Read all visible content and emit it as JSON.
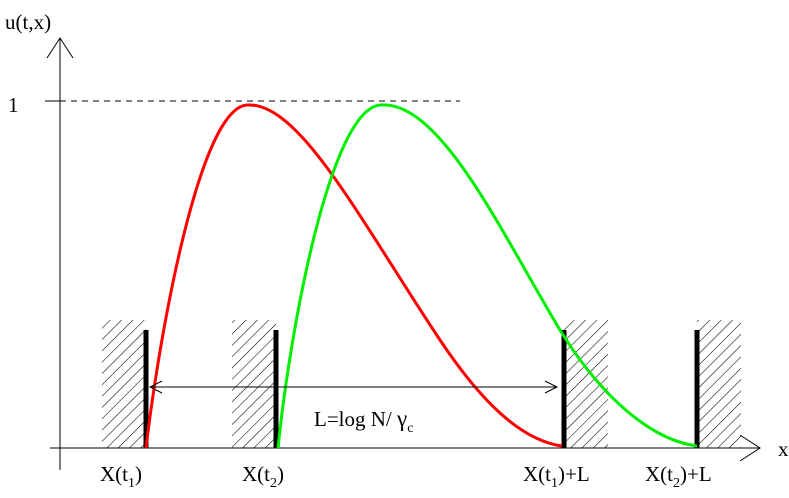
{
  "axes": {
    "y_label": "u(t,x)",
    "x_label": "x",
    "y_tick": "1"
  },
  "walls": [
    {
      "label_main": "X(t",
      "label_sub": "1",
      "label_tail": ")"
    },
    {
      "label_main": "X(t",
      "label_sub": "2",
      "label_tail": ")"
    },
    {
      "label_main": "X(t",
      "label_sub": "1",
      "label_tail": ")+L"
    },
    {
      "label_main": "X(t",
      "label_sub": "2",
      "label_tail": ")+L"
    }
  ],
  "width_annotation": {
    "text_main": "L=log N/ ",
    "greek": "γ",
    "sub": "c"
  },
  "curves": [
    {
      "color": "#ff0000"
    },
    {
      "color": "#00ee00"
    }
  ]
}
